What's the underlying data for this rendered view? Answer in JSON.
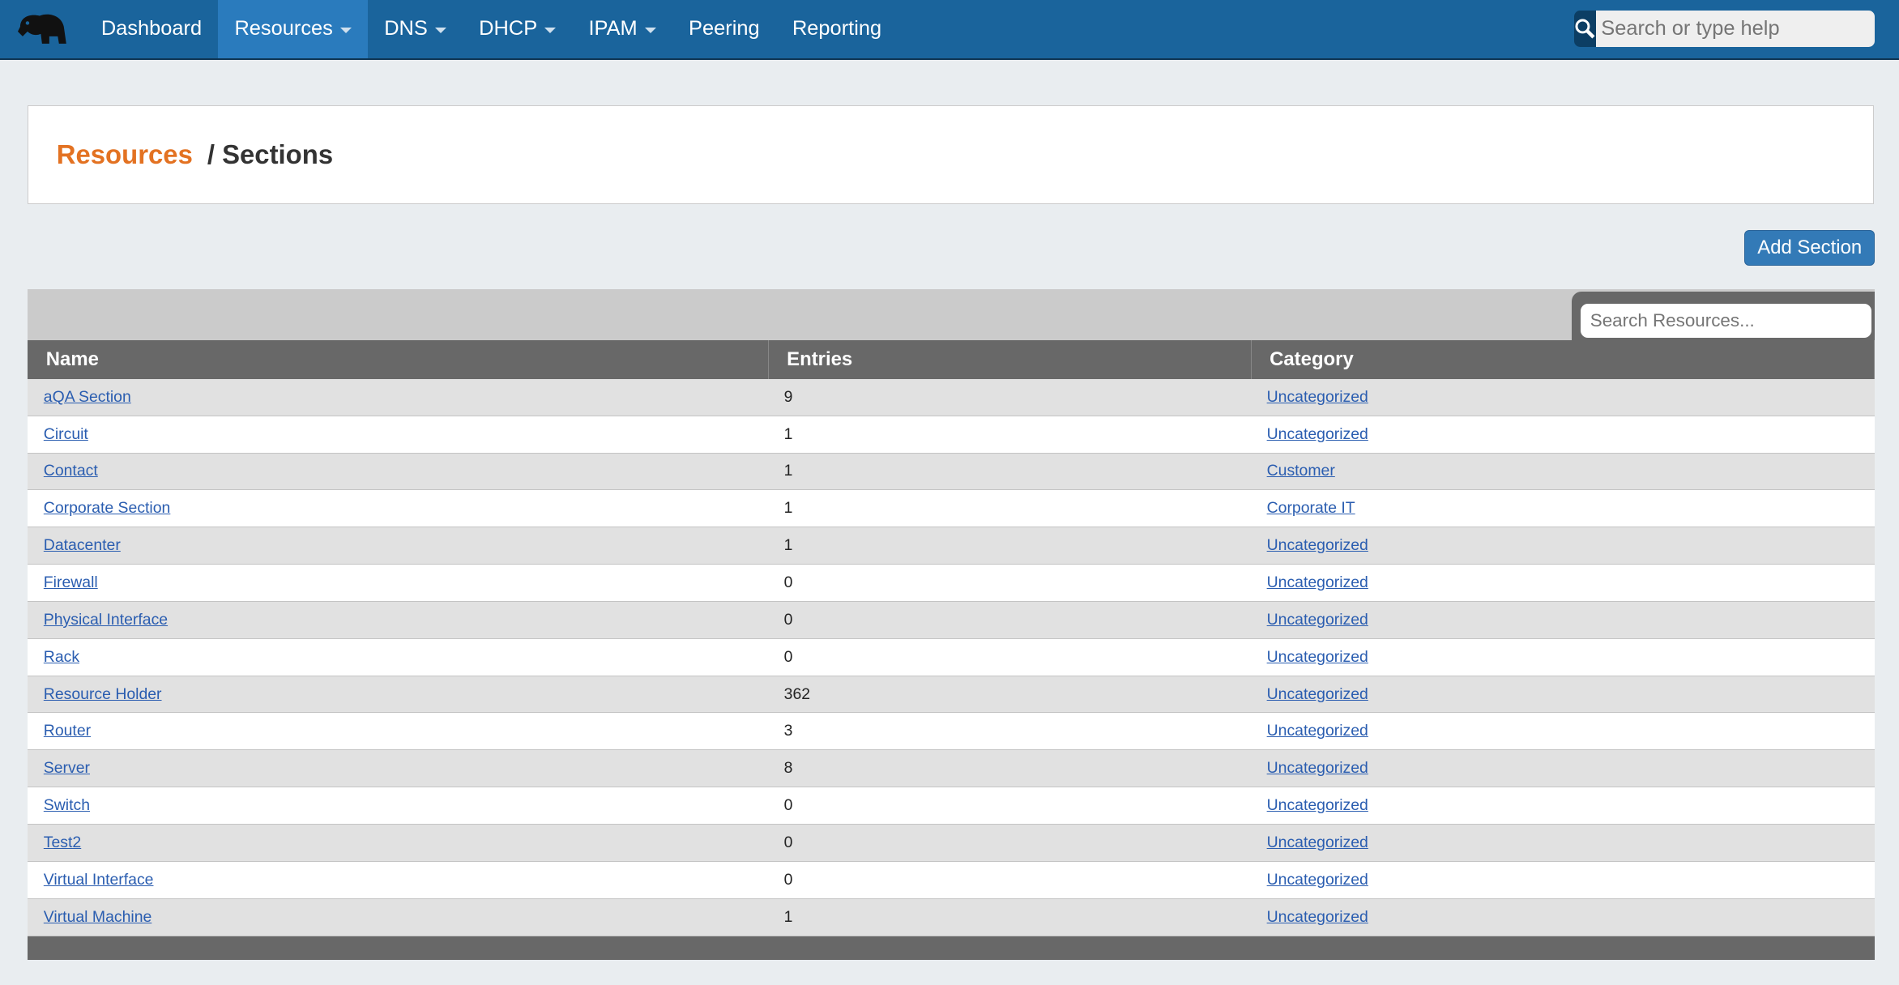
{
  "nav": {
    "items": [
      {
        "label": "Dashboard",
        "dropdown": false
      },
      {
        "label": "Resources",
        "dropdown": true,
        "active": true
      },
      {
        "label": "DNS",
        "dropdown": true
      },
      {
        "label": "DHCP",
        "dropdown": true
      },
      {
        "label": "IPAM",
        "dropdown": true
      },
      {
        "label": "Peering",
        "dropdown": false
      },
      {
        "label": "Reporting",
        "dropdown": false
      }
    ],
    "search_placeholder": "Search or type help"
  },
  "breadcrumb": {
    "parent": "Resources",
    "current": "/ Sections"
  },
  "add_button": "Add Section",
  "table": {
    "search_placeholder": "Search Resources...",
    "columns": [
      "Name",
      "Entries",
      "Category"
    ],
    "rows": [
      [
        "aQA Section",
        "9",
        "Uncategorized"
      ],
      [
        "Circuit",
        "1",
        "Uncategorized"
      ],
      [
        "Contact",
        "1",
        "Customer"
      ],
      [
        "Corporate Section",
        "1",
        "Corporate IT"
      ],
      [
        "Datacenter",
        "1",
        "Uncategorized"
      ],
      [
        "Firewall",
        "0",
        "Uncategorized"
      ],
      [
        "Physical Interface",
        "0",
        "Uncategorized"
      ],
      [
        "Rack",
        "0",
        "Uncategorized"
      ],
      [
        "Resource Holder",
        "362",
        "Uncategorized"
      ],
      [
        "Router",
        "3",
        "Uncategorized"
      ],
      [
        "Server",
        "8",
        "Uncategorized"
      ],
      [
        "Switch",
        "0",
        "Uncategorized"
      ],
      [
        "Test2",
        "0",
        "Uncategorized"
      ],
      [
        "Virtual Interface",
        "0",
        "Uncategorized"
      ],
      [
        "Virtual Machine",
        "1",
        "Uncategorized"
      ]
    ]
  },
  "colors": {
    "nav": "#1a649c",
    "accent": "#e37222",
    "button": "#337ab7"
  }
}
